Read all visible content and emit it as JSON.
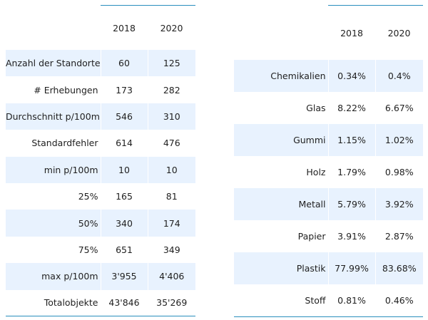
{
  "stats_table": {
    "headers": [
      "",
      "2018",
      "2020"
    ],
    "rows": [
      {
        "label": "Anzahl der Standorte",
        "v2018": "60",
        "v2020": "125"
      },
      {
        "label": "# Erhebungen",
        "v2018": "173",
        "v2020": "282"
      },
      {
        "label": "Durchschnitt p/100m",
        "v2018": "546",
        "v2020": "310"
      },
      {
        "label": "Standardfehler",
        "v2018": "614",
        "v2020": "476"
      },
      {
        "label": "min p/100m",
        "v2018": "10",
        "v2020": "10"
      },
      {
        "label": "25%",
        "v2018": "165",
        "v2020": "81"
      },
      {
        "label": "50%",
        "v2018": "340",
        "v2020": "174"
      },
      {
        "label": "75%",
        "v2018": "651",
        "v2020": "349"
      },
      {
        "label": "max p/100m",
        "v2018": "3'955",
        "v2020": "4'406"
      },
      {
        "label": "Totalobjekte",
        "v2018": "43'846",
        "v2020": "35'269"
      }
    ]
  },
  "material_table": {
    "headers": [
      "",
      "2018",
      "2020"
    ],
    "rows": [
      {
        "label": "Chemikalien",
        "v2018": "0.34%",
        "v2020": "0.4%"
      },
      {
        "label": "Glas",
        "v2018": "8.22%",
        "v2020": "6.67%"
      },
      {
        "label": "Gummi",
        "v2018": "1.15%",
        "v2020": "1.02%"
      },
      {
        "label": "Holz",
        "v2018": "1.79%",
        "v2020": "0.98%"
      },
      {
        "label": "Metall",
        "v2018": "5.79%",
        "v2020": "3.92%"
      },
      {
        "label": "Papier",
        "v2018": "3.91%",
        "v2020": "2.87%"
      },
      {
        "label": "Plastik",
        "v2018": "77.99%",
        "v2020": "83.68%"
      },
      {
        "label": "Stoff",
        "v2018": "0.81%",
        "v2020": "0.46%"
      }
    ]
  },
  "colors": {
    "stripe": "#e8f2fe",
    "rule": "#2a8fbd"
  }
}
